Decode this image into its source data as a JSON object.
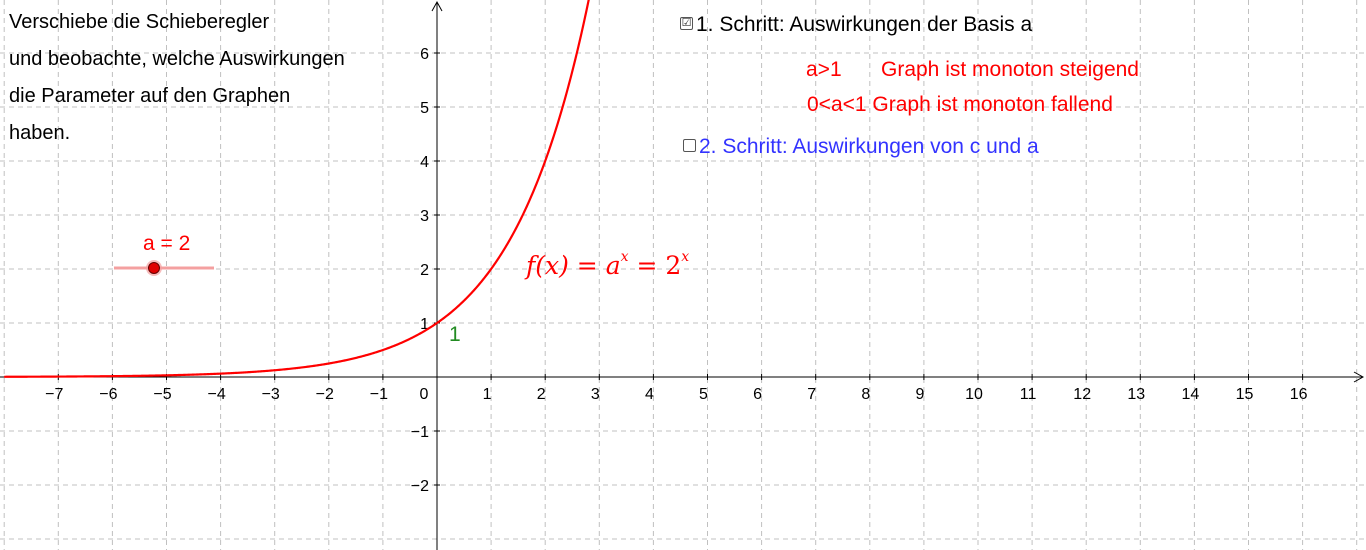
{
  "instructions": [
    "Verschiebe die Schieberegler",
    "und beobachte, welche Auswirkungen",
    "die Parameter auf den Graphen",
    "haben."
  ],
  "step1": {
    "checked": true,
    "check_glyph": "☑",
    "label": "1. Schritt: Auswirkungen der Basis a"
  },
  "rules": {
    "r1_condition": "a>1",
    "r1_text": "Graph ist monoton steigend",
    "r2": "0<a<1 Graph ist monoton fallend"
  },
  "step2": {
    "checked": false,
    "label": "2. Schritt: Auswirkungen von c und a"
  },
  "slider": {
    "label": "a = 2",
    "value": 2,
    "min": 0,
    "max": 4
  },
  "intercept_label": "1",
  "formula": {
    "lhs": "f(x) = a",
    "exp1": "x",
    "mid": " = 2",
    "exp2": "x"
  },
  "colors": {
    "graph": "#ff0000",
    "axis": "#000000",
    "grid": "#c0c0c0",
    "intercept": "#228b22",
    "step2": "#3333ff"
  },
  "chart_data": {
    "type": "line",
    "function": "2^x",
    "xlim": [
      -8,
      17
    ],
    "ylim": [
      -3,
      7
    ],
    "grid": true,
    "x_ticks": [
      "−7",
      "−6",
      "−5",
      "−4",
      "−3",
      "−2",
      "−1",
      "0",
      "1",
      "2",
      "3",
      "4",
      "5",
      "6",
      "7",
      "8",
      "9",
      "10",
      "11",
      "12",
      "13",
      "14",
      "15",
      "16"
    ],
    "y_ticks": [
      "−2",
      "−1",
      "1",
      "2",
      "3",
      "4",
      "5",
      "6"
    ],
    "series": [
      {
        "x": [
          -8,
          -7,
          -6,
          -5,
          -4,
          -3,
          -2,
          -1,
          0,
          0.5,
          1,
          1.5,
          2,
          2.5,
          2.8
        ],
        "y": [
          0.0039,
          0.0078,
          0.0156,
          0.031,
          0.0625,
          0.125,
          0.25,
          0.5,
          1,
          1.414,
          2,
          2.828,
          4,
          5.657,
          6.96
        ]
      }
    ]
  }
}
